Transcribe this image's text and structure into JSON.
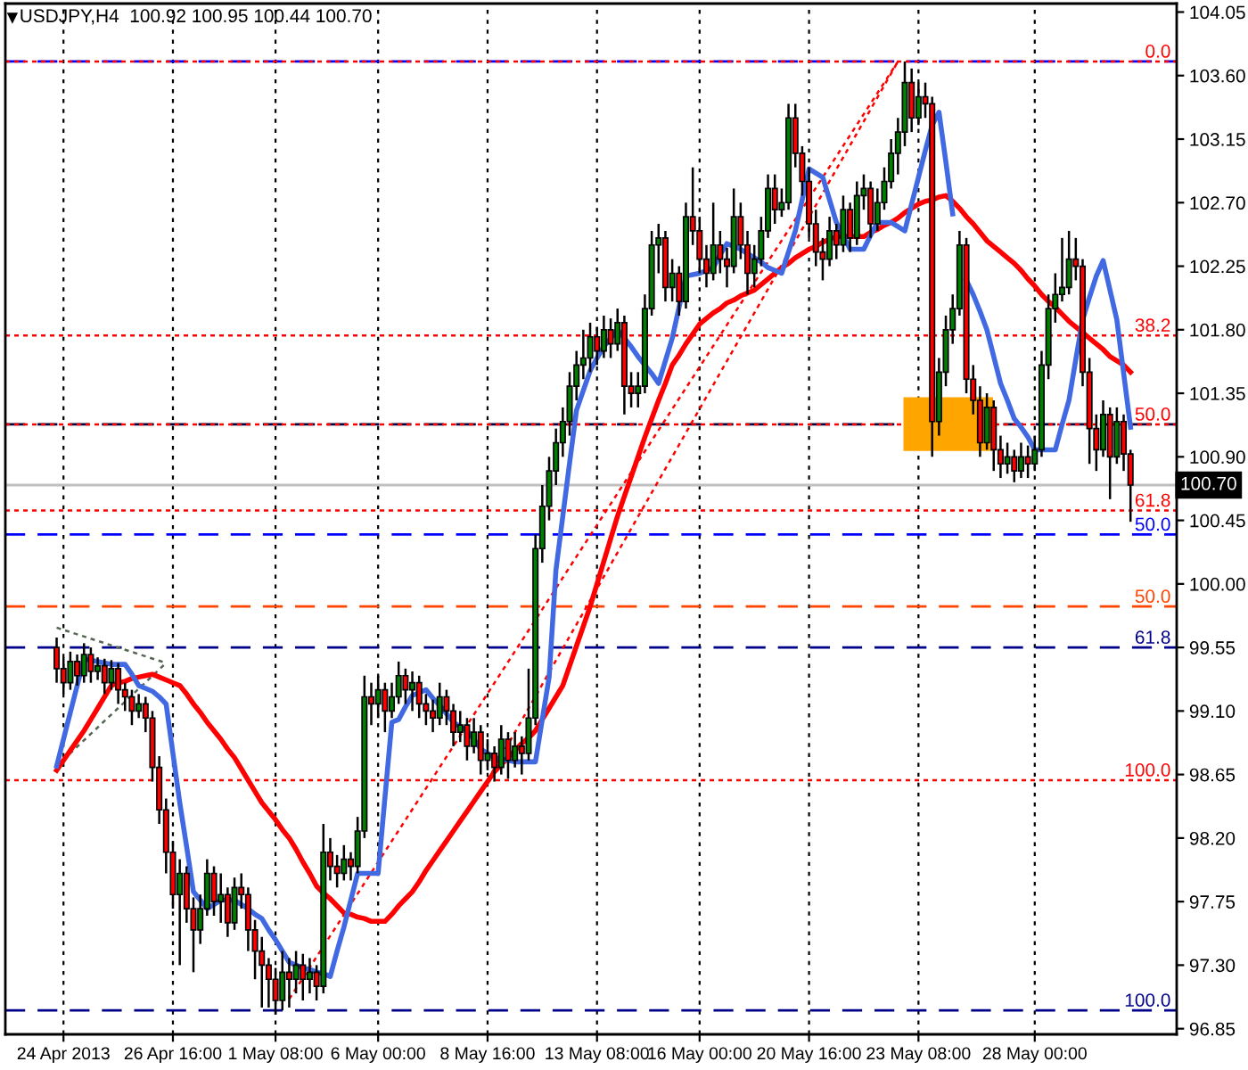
{
  "chart_data": {
    "type": "candlestick",
    "title": "USDJPY,H4  100.92 100.95 100.44 100.70",
    "categories": [
      null,
      "24 Apr 2013",
      null,
      null,
      null,
      null,
      null,
      null,
      null,
      null,
      null,
      null,
      null,
      null,
      null,
      null,
      null,
      "26 Apr 16:00",
      null,
      null,
      null,
      null,
      null,
      null,
      null,
      null,
      null,
      null,
      null,
      null,
      null,
      null,
      "1 May 08:00",
      null,
      null,
      null,
      null,
      null,
      null,
      null,
      null,
      null,
      null,
      null,
      null,
      null,
      null,
      "6 May 00:00",
      null,
      null,
      null,
      null,
      null,
      null,
      null,
      null,
      null,
      null,
      null,
      null,
      null,
      null,
      null,
      "8 May 16:00",
      null,
      null,
      null,
      null,
      null,
      null,
      null,
      null,
      null,
      null,
      null,
      null,
      null,
      null,
      null,
      "13 May 08:00",
      null,
      null,
      null,
      null,
      null,
      null,
      null,
      null,
      null,
      null,
      null,
      null,
      null,
      null,
      "16 May 00:00",
      null,
      null,
      null,
      null,
      null,
      null,
      null,
      null,
      null,
      null,
      null,
      null,
      null,
      null,
      null,
      "20 May 16:00",
      null,
      null,
      null,
      null,
      null,
      null,
      null,
      null,
      null,
      null,
      null,
      null,
      null,
      null,
      null,
      "23 May 08:00",
      null,
      null,
      null,
      null,
      null,
      null,
      null,
      null,
      null,
      null,
      null,
      null,
      null,
      null,
      null,
      null,
      "28 May 00:00",
      null,
      null,
      null,
      null,
      null,
      null,
      null,
      null,
      null,
      null,
      null,
      null,
      null,
      null
    ],
    "ohlc": [
      [
        99.55,
        99.62,
        99.3,
        99.4
      ],
      [
        99.4,
        99.48,
        99.22,
        99.3
      ],
      [
        99.3,
        99.52,
        99.25,
        99.45
      ],
      [
        99.45,
        99.5,
        99.28,
        99.35
      ],
      [
        99.35,
        99.58,
        99.3,
        99.5
      ],
      [
        99.5,
        99.55,
        99.3,
        99.38
      ],
      [
        99.38,
        99.48,
        99.32,
        99.42
      ],
      [
        99.42,
        99.47,
        99.22,
        99.3
      ],
      [
        99.3,
        99.46,
        99.25,
        99.4
      ],
      [
        99.4,
        99.44,
        99.15,
        99.25
      ],
      [
        99.25,
        99.3,
        99.1,
        99.2
      ],
      [
        99.2,
        99.25,
        99.0,
        99.1
      ],
      [
        99.1,
        99.22,
        99.05,
        99.15
      ],
      [
        99.15,
        99.2,
        98.95,
        99.05
      ],
      [
        99.05,
        99.1,
        98.6,
        98.7
      ],
      [
        98.7,
        98.78,
        98.3,
        98.4
      ],
      [
        98.4,
        98.48,
        97.95,
        98.1
      ],
      [
        98.1,
        98.18,
        97.7,
        97.8
      ],
      [
        97.8,
        98.05,
        97.3,
        97.95
      ],
      [
        97.95,
        98.0,
        97.6,
        97.7
      ],
      [
        97.7,
        97.78,
        97.25,
        97.55
      ],
      [
        97.55,
        97.8,
        97.45,
        97.7
      ],
      [
        97.7,
        98.05,
        97.65,
        97.95
      ],
      [
        97.95,
        98.0,
        97.65,
        97.75
      ],
      [
        97.75,
        97.95,
        97.6,
        97.8
      ],
      [
        97.8,
        97.85,
        97.5,
        97.6
      ],
      [
        97.6,
        97.92,
        97.55,
        97.85
      ],
      [
        97.85,
        97.95,
        97.7,
        97.8
      ],
      [
        97.8,
        97.85,
        97.4,
        97.55
      ],
      [
        97.55,
        97.62,
        97.2,
        97.4
      ],
      [
        97.4,
        97.5,
        97.0,
        97.3
      ],
      [
        97.3,
        97.35,
        97.0,
        97.2
      ],
      [
        97.2,
        97.28,
        96.95,
        97.05
      ],
      [
        97.05,
        97.4,
        96.98,
        97.25
      ],
      [
        97.25,
        97.35,
        97.0,
        97.2
      ],
      [
        97.2,
        97.4,
        97.1,
        97.3
      ],
      [
        97.3,
        97.38,
        97.05,
        97.2
      ],
      [
        97.2,
        97.35,
        97.1,
        97.25
      ],
      [
        97.25,
        97.3,
        97.05,
        97.15
      ],
      [
        97.15,
        98.3,
        97.1,
        98.1
      ],
      [
        98.1,
        98.2,
        97.9,
        98.0
      ],
      [
        98.0,
        98.08,
        97.85,
        97.95
      ],
      [
        97.95,
        98.15,
        97.9,
        98.05
      ],
      [
        98.05,
        98.1,
        97.9,
        98.0
      ],
      [
        98.0,
        98.35,
        97.95,
        98.25
      ],
      [
        98.25,
        99.35,
        98.2,
        99.2
      ],
      [
        99.2,
        99.3,
        99.0,
        99.15
      ],
      [
        99.15,
        99.35,
        99.05,
        99.25
      ],
      [
        99.25,
        99.3,
        98.95,
        99.1
      ],
      [
        99.1,
        99.3,
        99.05,
        99.2
      ],
      [
        99.2,
        99.45,
        99.15,
        99.35
      ],
      [
        99.35,
        99.4,
        99.15,
        99.25
      ],
      [
        99.25,
        99.38,
        99.1,
        99.3
      ],
      [
        99.3,
        99.35,
        99.05,
        99.15
      ],
      [
        99.15,
        99.22,
        99.0,
        99.1
      ],
      [
        99.1,
        99.18,
        98.95,
        99.05
      ],
      [
        99.05,
        99.3,
        99.0,
        99.2
      ],
      [
        99.2,
        99.25,
        99.0,
        99.1
      ],
      [
        99.1,
        99.15,
        98.85,
        98.95
      ],
      [
        98.95,
        99.1,
        98.88,
        99.0
      ],
      [
        99.0,
        99.05,
        98.75,
        98.85
      ],
      [
        98.85,
        99.05,
        98.8,
        98.95
      ],
      [
        98.95,
        99.0,
        98.65,
        98.75
      ],
      [
        98.75,
        98.9,
        98.68,
        98.8
      ],
      [
        98.8,
        98.85,
        98.6,
        98.7
      ],
      [
        98.7,
        99.0,
        98.65,
        98.9
      ],
      [
        98.9,
        98.95,
        98.62,
        98.75
      ],
      [
        98.75,
        98.95,
        98.7,
        98.85
      ],
      [
        98.85,
        98.92,
        98.65,
        98.8
      ],
      [
        98.8,
        99.4,
        98.75,
        99.05
      ],
      [
        99.05,
        100.35,
        99.0,
        100.25
      ],
      [
        100.25,
        100.7,
        100.15,
        100.55
      ],
      [
        100.55,
        100.9,
        100.45,
        100.8
      ],
      [
        100.8,
        101.1,
        100.7,
        101.0
      ],
      [
        101.0,
        101.25,
        100.9,
        101.15
      ],
      [
        101.15,
        101.5,
        101.05,
        101.4
      ],
      [
        101.4,
        101.65,
        101.3,
        101.55
      ],
      [
        101.55,
        101.8,
        101.45,
        101.6
      ],
      [
        101.6,
        101.85,
        101.5,
        101.75
      ],
      [
        101.75,
        101.82,
        101.55,
        101.65
      ],
      [
        101.65,
        101.9,
        101.6,
        101.8
      ],
      [
        101.8,
        101.88,
        101.6,
        101.7
      ],
      [
        101.7,
        101.95,
        101.65,
        101.85
      ],
      [
        101.85,
        101.9,
        101.2,
        101.4
      ],
      [
        101.4,
        101.5,
        101.25,
        101.35
      ],
      [
        101.35,
        101.5,
        101.25,
        101.4
      ],
      [
        101.4,
        102.05,
        101.35,
        101.95
      ],
      [
        101.95,
        102.5,
        101.9,
        102.4
      ],
      [
        102.4,
        102.55,
        102.2,
        102.45
      ],
      [
        102.45,
        102.5,
        102.0,
        102.1
      ],
      [
        102.1,
        102.3,
        102.0,
        102.2
      ],
      [
        102.2,
        102.25,
        101.9,
        102.0
      ],
      [
        102.0,
        102.7,
        101.95,
        102.6
      ],
      [
        102.6,
        102.95,
        102.4,
        102.5
      ],
      [
        102.5,
        102.6,
        102.2,
        102.3
      ],
      [
        102.3,
        102.4,
        102.1,
        102.2
      ],
      [
        102.2,
        102.7,
        102.15,
        102.4
      ],
      [
        102.4,
        102.5,
        102.2,
        102.3
      ],
      [
        102.3,
        102.38,
        102.1,
        102.25
      ],
      [
        102.25,
        102.8,
        102.2,
        102.6
      ],
      [
        102.6,
        102.7,
        102.3,
        102.4
      ],
      [
        102.4,
        102.5,
        102.05,
        102.2
      ],
      [
        102.2,
        102.4,
        102.1,
        102.3
      ],
      [
        102.3,
        102.6,
        102.25,
        102.5
      ],
      [
        102.5,
        102.9,
        102.45,
        102.8
      ],
      [
        102.8,
        102.9,
        102.55,
        102.65
      ],
      [
        102.65,
        102.8,
        102.6,
        102.7
      ],
      [
        102.7,
        103.4,
        102.65,
        103.3
      ],
      [
        103.3,
        103.4,
        102.95,
        103.05
      ],
      [
        103.05,
        103.1,
        102.75,
        102.85
      ],
      [
        102.85,
        102.95,
        102.45,
        102.55
      ],
      [
        102.55,
        102.65,
        102.25,
        102.35
      ],
      [
        102.35,
        102.45,
        102.15,
        102.3
      ],
      [
        102.3,
        102.6,
        102.25,
        102.5
      ],
      [
        102.5,
        102.55,
        102.3,
        102.4
      ],
      [
        102.4,
        102.75,
        102.35,
        102.65
      ],
      [
        102.65,
        102.7,
        102.35,
        102.45
      ],
      [
        102.45,
        102.85,
        102.4,
        102.75
      ],
      [
        102.75,
        102.9,
        102.65,
        102.8
      ],
      [
        102.8,
        102.85,
        102.45,
        102.55
      ],
      [
        102.55,
        102.8,
        102.5,
        102.7
      ],
      [
        102.7,
        102.95,
        102.65,
        102.85
      ],
      [
        102.85,
        103.15,
        102.8,
        103.05
      ],
      [
        103.05,
        103.3,
        102.9,
        103.2
      ],
      [
        103.2,
        103.7,
        103.1,
        103.55
      ],
      [
        103.55,
        103.65,
        103.2,
        103.3
      ],
      [
        103.3,
        103.55,
        103.25,
        103.45
      ],
      [
        103.45,
        103.55,
        103.3,
        103.4
      ],
      [
        103.4,
        103.45,
        100.9,
        101.15
      ],
      [
        101.15,
        101.6,
        101.05,
        101.5
      ],
      [
        101.5,
        101.9,
        101.4,
        101.8
      ],
      [
        101.8,
        102.05,
        101.7,
        101.95
      ],
      [
        101.95,
        102.5,
        101.9,
        102.4
      ],
      [
        102.4,
        102.45,
        101.35,
        101.45
      ],
      [
        101.45,
        101.55,
        101.2,
        101.3
      ],
      [
        101.3,
        101.4,
        100.9,
        101.0
      ],
      [
        101.0,
        101.35,
        100.95,
        101.25
      ],
      [
        101.25,
        101.3,
        100.8,
        100.95
      ],
      [
        100.95,
        101.05,
        100.75,
        100.85
      ],
      [
        100.85,
        101.0,
        100.78,
        100.9
      ],
      [
        100.9,
        100.95,
        100.72,
        100.8
      ],
      [
        100.8,
        101.0,
        100.75,
        100.9
      ],
      [
        100.9,
        100.98,
        100.75,
        100.85
      ],
      [
        100.85,
        101.05,
        100.8,
        100.95
      ],
      [
        100.95,
        101.65,
        100.9,
        101.55
      ],
      [
        101.55,
        102.05,
        101.45,
        101.95
      ],
      [
        101.95,
        102.2,
        101.85,
        102.05
      ],
      [
        102.05,
        102.45,
        102.0,
        102.1
      ],
      [
        102.1,
        102.5,
        102.05,
        102.3
      ],
      [
        102.3,
        102.45,
        102.15,
        102.25
      ],
      [
        102.25,
        102.3,
        101.4,
        101.5
      ],
      [
        101.5,
        101.6,
        100.85,
        101.1
      ],
      [
        101.1,
        101.2,
        100.8,
        100.95
      ],
      [
        100.95,
        101.3,
        100.9,
        101.2
      ],
      [
        101.2,
        101.25,
        100.6,
        100.9
      ],
      [
        100.9,
        101.25,
        100.85,
        101.15
      ],
      [
        101.15,
        101.2,
        100.8,
        100.92
      ],
      [
        100.92,
        100.95,
        100.44,
        100.7
      ]
    ],
    "series": [
      {
        "type": "line",
        "color": "#ff0000",
        "values": [
          98.68,
          98.75,
          98.82,
          98.89,
          98.96,
          99.04,
          99.12,
          99.2,
          99.28,
          99.3,
          99.31,
          99.33,
          99.34,
          99.35,
          99.36,
          99.34,
          99.32,
          99.3,
          99.28,
          99.22,
          99.15,
          99.09,
          99.02,
          98.96,
          98.9,
          98.83,
          98.77,
          98.69,
          98.61,
          98.53,
          98.45,
          98.39,
          98.33,
          98.26,
          98.2,
          98.12,
          98.03,
          97.95,
          97.86,
          97.81,
          97.77,
          97.72,
          97.67,
          97.66,
          97.64,
          97.63,
          97.61,
          97.61,
          97.61,
          97.66,
          97.72,
          97.77,
          97.82,
          97.89,
          97.97,
          98.04,
          98.11,
          98.18,
          98.25,
          98.32,
          98.39,
          98.46,
          98.53,
          98.6,
          98.67,
          98.72,
          98.77,
          98.82,
          98.87,
          98.91,
          98.96,
          99.04,
          99.12,
          99.2,
          99.28,
          99.42,
          99.56,
          99.7,
          99.84,
          100.0,
          100.16,
          100.32,
          100.48,
          100.62,
          100.76,
          100.9,
          101.04,
          101.17,
          101.3,
          101.42,
          101.55,
          101.62,
          101.7,
          101.77,
          101.84,
          101.88,
          101.92,
          101.95,
          101.99,
          102.01,
          102.04,
          102.06,
          102.08,
          102.12,
          102.16,
          102.2,
          102.24,
          102.27,
          102.31,
          102.34,
          102.37,
          102.39,
          102.42,
          102.44,
          102.46,
          102.46,
          102.46,
          102.46,
          102.46,
          102.49,
          102.51,
          102.54,
          102.56,
          102.59,
          102.63,
          102.66,
          102.69,
          102.71,
          102.72,
          102.74,
          102.75,
          102.71,
          102.66,
          102.6,
          102.55,
          102.49,
          102.43,
          102.39,
          102.35,
          102.31,
          102.27,
          102.22,
          102.16,
          102.11,
          102.05,
          102.0,
          101.96,
          101.91,
          101.86,
          101.82,
          101.78,
          101.74,
          101.7,
          101.66,
          101.61,
          101.58,
          101.55,
          101.5
        ]
      },
      {
        "type": "line",
        "color": "#4169e1",
        "values": [
          98.71,
          98.9,
          99.09,
          99.28,
          99.47,
          99.46,
          99.45,
          99.44,
          99.43,
          99.43,
          99.43,
          99.36,
          99.28,
          99.26,
          99.24,
          99.2,
          99.15,
          98.8,
          98.45,
          98.14,
          97.82,
          97.76,
          97.7,
          97.73,
          97.76,
          97.76,
          97.76,
          97.73,
          97.7,
          97.66,
          97.63,
          97.55,
          97.48,
          97.4,
          97.32,
          97.3,
          97.28,
          97.27,
          97.25,
          97.24,
          97.22,
          97.4,
          97.57,
          97.76,
          97.95,
          97.95,
          97.95,
          97.95,
          98.49,
          99.02,
          99.04,
          99.13,
          99.21,
          99.23,
          99.25,
          99.19,
          99.14,
          99.08,
          99.02,
          98.99,
          98.96,
          98.9,
          98.83,
          98.8,
          98.77,
          98.76,
          98.75,
          98.74,
          98.74,
          98.74,
          98.74,
          99.04,
          99.34,
          100.1,
          100.48,
          100.86,
          101.23,
          101.37,
          101.51,
          101.6,
          101.68,
          101.74,
          101.8,
          101.74,
          101.68,
          101.61,
          101.55,
          101.49,
          101.42,
          101.58,
          101.74,
          101.96,
          102.18,
          102.19,
          102.2,
          102.22,
          102.24,
          102.33,
          102.41,
          102.39,
          102.37,
          102.34,
          102.31,
          102.28,
          102.24,
          102.22,
          102.2,
          102.35,
          102.5,
          102.72,
          102.94,
          102.91,
          102.88,
          102.72,
          102.56,
          102.47,
          102.37,
          102.37,
          102.37,
          102.47,
          102.56,
          102.56,
          102.56,
          102.53,
          102.5,
          102.69,
          102.88,
          103.07,
          103.25,
          103.34,
          102.99,
          102.62,
          null,
          102.15,
          102.05,
          101.93,
          101.8,
          101.61,
          101.42,
          101.3,
          101.17,
          101.11,
          101.04,
          100.95,
          100.95,
          100.95,
          100.95,
          101.13,
          101.3,
          101.59,
          101.87,
          102.03,
          102.18,
          102.29,
          102.08,
          101.87,
          101.49,
          101.11
        ]
      },
      {
        "type": "line",
        "color": "#ff0000",
        "line_style": "dotted",
        "values": [
          null,
          null,
          null,
          null,
          null,
          null,
          null,
          null,
          null,
          null,
          null,
          null,
          null,
          null,
          null,
          null,
          null,
          null,
          null,
          null,
          null,
          null,
          null,
          null,
          null,
          null,
          null,
          null,
          null,
          null,
          null,
          null,
          null,
          null,
          97.06,
          null,
          null,
          null,
          null,
          null,
          null,
          null,
          null,
          null,
          null,
          null,
          null,
          null,
          null,
          null,
          null,
          null,
          null,
          null,
          null,
          null,
          null,
          null,
          null,
          null,
          null,
          null,
          null,
          null,
          null,
          null,
          null,
          null,
          null,
          null,
          null,
          null,
          null,
          null,
          null,
          null,
          null,
          null,
          null,
          null,
          null,
          null,
          null,
          null,
          null,
          null,
          null,
          null,
          null,
          null,
          null,
          null,
          null,
          null,
          null,
          null,
          null,
          null,
          null,
          null,
          null,
          null,
          null,
          null,
          null,
          null,
          null,
          null,
          null,
          null,
          null,
          null,
          null,
          null,
          null,
          null,
          null,
          null,
          null,
          null,
          null,
          null,
          null,
          103.7,
          null,
          null,
          null,
          null,
          null,
          null,
          null,
          null,
          null,
          null,
          null,
          null,
          null,
          null,
          null,
          null,
          null,
          null,
          null,
          null,
          null,
          null,
          null,
          null,
          null,
          null,
          null,
          null,
          null,
          null,
          null,
          null,
          null,
          null
        ]
      },
      {
        "type": "line",
        "color": "#ff0000",
        "line_style": "dotted",
        "values": [
          null,
          null,
          null,
          null,
          null,
          null,
          null,
          null,
          null,
          null,
          null,
          null,
          null,
          null,
          null,
          null,
          null,
          null,
          null,
          null,
          null,
          null,
          null,
          null,
          null,
          null,
          null,
          null,
          null,
          null,
          null,
          null,
          null,
          null,
          null,
          null,
          null,
          null,
          null,
          null,
          null,
          null,
          null,
          null,
          null,
          null,
          null,
          null,
          null,
          null,
          null,
          null,
          null,
          null,
          null,
          null,
          null,
          null,
          null,
          null,
          null,
          null,
          null,
          98.61,
          null,
          null,
          null,
          null,
          null,
          null,
          null,
          null,
          null,
          null,
          null,
          null,
          null,
          null,
          null,
          null,
          null,
          null,
          null,
          null,
          null,
          null,
          null,
          null,
          null,
          null,
          null,
          null,
          null,
          null,
          null,
          null,
          null,
          null,
          null,
          null,
          null,
          null,
          null,
          null,
          null,
          null,
          null,
          null,
          null,
          null,
          null,
          null,
          null,
          null,
          null,
          null,
          null,
          null,
          null,
          null,
          null,
          null,
          null,
          103.7,
          null,
          null,
          null,
          null,
          null,
          null,
          null,
          null,
          null,
          null,
          null,
          null,
          null,
          null,
          null,
          null,
          null,
          null,
          null,
          null,
          null,
          null,
          null,
          null,
          null,
          null,
          null,
          null,
          null,
          null,
          null,
          null,
          null,
          null
        ]
      },
      {
        "type": "line",
        "color": "#556655",
        "line_style": "dotted",
        "values": [
          99.69,
          null,
          null,
          null,
          null,
          null,
          null,
          null,
          null,
          null,
          null,
          null,
          null,
          null,
          null,
          null,
          99.44,
          null,
          null,
          null,
          null,
          null,
          null,
          null,
          null,
          null,
          null,
          null,
          null,
          null,
          null,
          null,
          null,
          null,
          null,
          null,
          null,
          null,
          null,
          null,
          null,
          null,
          null,
          null,
          null,
          null,
          null,
          null,
          null,
          null,
          null,
          null,
          null,
          null,
          null,
          null,
          null,
          null,
          null,
          null,
          null,
          null,
          null,
          null,
          null,
          null,
          null,
          null,
          null,
          null,
          null,
          null,
          null,
          null,
          null,
          null,
          null,
          null,
          null,
          null,
          null,
          null,
          null,
          null,
          null,
          null,
          null,
          null,
          null,
          null,
          null,
          null,
          null,
          null,
          null,
          null,
          null,
          null,
          null,
          null,
          null,
          null,
          null,
          null,
          null,
          null,
          null,
          null,
          null,
          null,
          null,
          null,
          null,
          null,
          null,
          null,
          null,
          null,
          null,
          null,
          null,
          null,
          null,
          null,
          null,
          null,
          null,
          null,
          null,
          null,
          null,
          null,
          null,
          null,
          null,
          null,
          null,
          null,
          null,
          null,
          null,
          null,
          null,
          null,
          null,
          null,
          null,
          null,
          null,
          null,
          null,
          null,
          null,
          null,
          null,
          null,
          null,
          null
        ]
      },
      {
        "type": "line",
        "color": "#556655",
        "line_style": "dotted",
        "values": [
          98.71,
          null,
          null,
          null,
          null,
          null,
          null,
          null,
          null,
          null,
          null,
          null,
          null,
          null,
          null,
          null,
          99.44,
          null,
          null,
          null,
          null,
          null,
          null,
          null,
          null,
          null,
          null,
          null,
          null,
          null,
          null,
          null,
          null,
          null,
          null,
          null,
          null,
          null,
          null,
          null,
          null,
          null,
          null,
          null,
          null,
          null,
          null,
          null,
          null,
          null,
          null,
          null,
          null,
          null,
          null,
          null,
          null,
          null,
          null,
          null,
          null,
          null,
          null,
          null,
          null,
          null,
          null,
          null,
          null,
          null,
          null,
          null,
          null,
          null,
          null,
          null,
          null,
          null,
          null,
          null,
          null,
          null,
          null,
          null,
          null,
          null,
          null,
          null,
          null,
          null,
          null,
          null,
          null,
          null,
          null,
          null,
          null,
          null,
          null,
          null,
          null,
          null,
          null,
          null,
          null,
          null,
          null,
          null,
          null,
          null,
          null,
          null,
          null,
          null,
          null,
          null,
          null,
          null,
          null,
          null,
          null,
          null,
          null,
          null,
          null,
          null,
          null,
          null,
          null,
          null,
          null,
          null,
          null,
          null,
          null,
          null,
          null,
          null,
          null,
          null,
          null,
          null,
          null,
          null,
          null,
          null,
          null,
          null,
          null,
          null,
          null,
          null,
          null,
          null,
          null,
          null,
          null,
          null
        ]
      }
    ],
    "ylim": [
      96.81,
      104.11
    ],
    "yticks": [
      {
        "value": 96.85,
        "label": "96.85"
      },
      {
        "value": 97.3,
        "label": "97.30"
      },
      97.75,
      {
        "value": 98.2,
        "label": "98.20"
      },
      98.65,
      {
        "value": 99.1,
        "label": "99.10"
      },
      99.55,
      {
        "value": 100.0,
        "label": "100.00"
      },
      100.45,
      {
        "value": 100.9,
        "label": "100.90"
      },
      101.35,
      {
        "value": 101.8,
        "label": "101.80"
      },
      102.25,
      {
        "value": 102.7,
        "label": "102.70"
      },
      103.15,
      {
        "value": 103.6,
        "label": "103.60"
      },
      104.05
    ],
    "grid": "x",
    "marker": "none",
    "ref_lines": [
      {
        "axis": "y",
        "value": 103.7,
        "color": "#0000ff",
        "line_style": "dashed"
      },
      {
        "axis": "y",
        "value": 103.7,
        "color": "#ff0000",
        "line_style": "dotted"
      },
      {
        "axis": "y",
        "value": 101.76,
        "color": "#ff0000",
        "line_style": "dotted"
      },
      {
        "axis": "y",
        "value": 101.13,
        "color": "#000040",
        "line_style": "dashed"
      },
      {
        "axis": "y",
        "value": 101.13,
        "color": "#ff0000",
        "line_style": "dotted"
      },
      {
        "axis": "y",
        "value": 100.52,
        "color": "#ff0000",
        "line_style": "dotted"
      },
      {
        "axis": "y",
        "value": 100.35,
        "color": "#0000ff",
        "line_style": "dashed"
      },
      {
        "axis": "y",
        "value": 99.84,
        "color": "#ff4500",
        "line_style": "dashed"
      },
      {
        "axis": "y",
        "value": 99.55,
        "color": "#00008b",
        "line_style": "dashed"
      },
      {
        "axis": "y",
        "value": 98.61,
        "color": "#ff0000",
        "line_style": "dotted"
      },
      {
        "axis": "y",
        "value": 96.98,
        "color": "#00008b",
        "line_style": "dashed"
      },
      {
        "axis": "y",
        "value": 100.7,
        "label": "100.70",
        "color": "#c0c0c0",
        "line_style": "solid"
      }
    ],
    "annotations": [
      {
        "text": "0.0",
        "y": 103.7
      },
      {
        "text": "38.2",
        "y": 101.76
      },
      {
        "text": "50.0",
        "y": 101.13
      },
      {
        "text": "61.8",
        "y": 100.52
      },
      {
        "text": "50.0",
        "y": 100.35
      },
      {
        "text": "50.0",
        "y": 99.84
      },
      {
        "text": "61.8",
        "y": 99.55
      },
      {
        "text": "100.0",
        "y": 98.61
      },
      {
        "text": "100.0",
        "y": 96.98
      }
    ]
  }
}
